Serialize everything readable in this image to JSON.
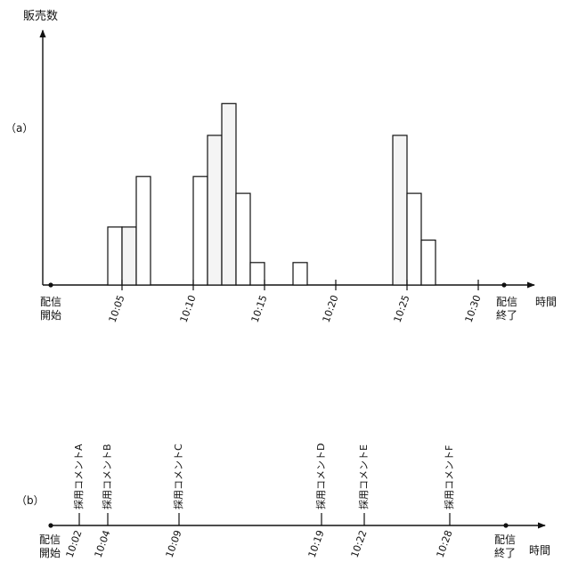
{
  "panel_a": {
    "label": "（a）",
    "ylabel": "販売数",
    "xlabel": "時間",
    "start_label": [
      "配信",
      "開始"
    ],
    "end_label": [
      "配信",
      "終了"
    ]
  },
  "panel_b": {
    "label": "（b）",
    "xlabel": "時間",
    "start_label": [
      "配信",
      "開始"
    ],
    "end_label": [
      "配信",
      "終了"
    ]
  },
  "colors": {
    "ink": "#111111",
    "bar_fill": "#ffffff",
    "bar_fill_highlight": "#f4f4f4"
  },
  "chart_data": [
    {
      "type": "bar",
      "title": "",
      "xlabel": "時間",
      "ylabel": "販売数",
      "x_unit": "minutes from 10:00",
      "x_range": [
        -1.5,
        33
      ],
      "ylim": [
        0,
        10
      ],
      "grid": false,
      "ticks": [
        {
          "x": 5,
          "label": "10:05"
        },
        {
          "x": 10,
          "label": "10:10"
        },
        {
          "x": 15,
          "label": "10:15"
        },
        {
          "x": 20,
          "label": "10:20"
        },
        {
          "x": 25,
          "label": "10:25"
        },
        {
          "x": 30,
          "label": "10:30"
        }
      ],
      "bars": [
        {
          "start": 4.0,
          "end": 5.0,
          "value": 3.1
        },
        {
          "start": 5.0,
          "end": 6.0,
          "value": 3.1,
          "highlight": true
        },
        {
          "start": 6.0,
          "end": 7.0,
          "value": 5.8
        },
        {
          "start": 10.0,
          "end": 11.0,
          "value": 5.8
        },
        {
          "start": 11.0,
          "end": 12.0,
          "value": 8.0,
          "highlight": true
        },
        {
          "start": 12.0,
          "end": 13.0,
          "value": 9.7,
          "highlight": true
        },
        {
          "start": 13.0,
          "end": 14.0,
          "value": 4.9
        },
        {
          "start": 14.0,
          "end": 15.0,
          "value": 1.2
        },
        {
          "start": 17.0,
          "end": 18.0,
          "value": 1.2
        },
        {
          "start": 24.0,
          "end": 25.0,
          "value": 8.0,
          "highlight": true
        },
        {
          "start": 25.0,
          "end": 26.0,
          "value": 4.9
        },
        {
          "start": 26.0,
          "end": 27.0,
          "value": 2.4
        }
      ]
    },
    {
      "type": "timeline",
      "title": "",
      "xlabel": "時間",
      "x_unit": "minutes from 10:00",
      "x_range": [
        -1.5,
        33
      ],
      "events": [
        {
          "x": 2,
          "time": "10:02",
          "label": "採用コメントA"
        },
        {
          "x": 4,
          "time": "10:04",
          "label": "採用コメントB"
        },
        {
          "x": 9,
          "time": "10:09",
          "label": "採用コメントC"
        },
        {
          "x": 19,
          "time": "10:19",
          "label": "採用コメントD"
        },
        {
          "x": 22,
          "time": "10:22",
          "label": "採用コメントE"
        },
        {
          "x": 28,
          "time": "10:28",
          "label": "採用コメントF"
        }
      ]
    }
  ]
}
